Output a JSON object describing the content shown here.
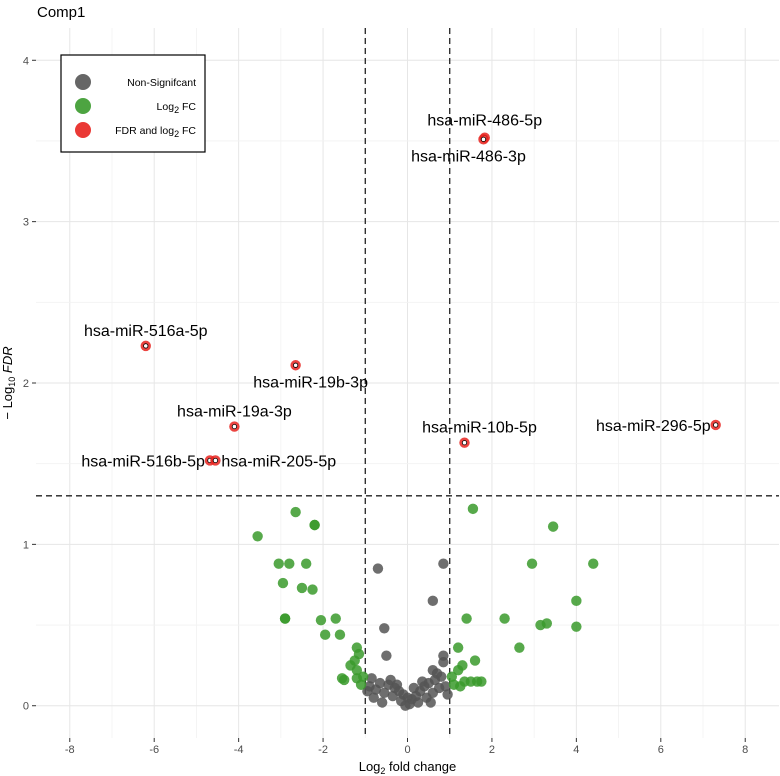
{
  "chart_data": {
    "type": "scatter",
    "title": "Comp1",
    "xlabel": {
      "pre": "Log",
      "sub": "2",
      "post": " fold change"
    },
    "ylabel": {
      "pre": "− Log",
      "sub": "10",
      "post": " FDR"
    },
    "xlim": [
      -8.8,
      8.8
    ],
    "ylim": [
      -0.2,
      4.2
    ],
    "x_ticks": [
      -8,
      -6,
      -4,
      -2,
      0,
      2,
      4,
      6,
      8
    ],
    "y_ticks": [
      0,
      1,
      2,
      3,
      4
    ],
    "fc_cutoff": [
      -1,
      1
    ],
    "fdr_cutoff": 1.301,
    "grid": true,
    "legend": {
      "position": "top-left",
      "entries": [
        {
          "key": "ns",
          "pre": "Non-Signifcant",
          "sub": "",
          "post": "",
          "color": "#555555"
        },
        {
          "key": "fc",
          "pre": "Log",
          "sub": "2",
          "post": " FC",
          "color": "#3a9a2c"
        },
        {
          "key": "both",
          "pre": "FDR and log",
          "sub": "2",
          "post": " FC",
          "color": "#e8231f"
        }
      ]
    },
    "series": [
      {
        "name": "FDR and log2 FC",
        "color": "#e8231f",
        "points": [
          {
            "label": "hsa-miR-486-5p",
            "x": 1.83,
            "y": 3.52
          },
          {
            "label": "hsa-miR-486-3p",
            "x": 1.8,
            "y": 3.51
          },
          {
            "label": "hsa-miR-516a-5p",
            "x": -6.2,
            "y": 2.23
          },
          {
            "label": "hsa-miR-19b-3p",
            "x": -2.65,
            "y": 2.11
          },
          {
            "label": "hsa-miR-19a-3p",
            "x": -4.1,
            "y": 1.73
          },
          {
            "label": "hsa-miR-10b-5p",
            "x": 1.35,
            "y": 1.63
          },
          {
            "label": "hsa-miR-296-5p",
            "x": 7.3,
            "y": 1.74
          },
          {
            "label": "hsa-miR-516b-5p",
            "x": -4.68,
            "y": 1.52
          },
          {
            "label": "hsa-miR-205-5p",
            "x": -4.55,
            "y": 1.52
          }
        ]
      },
      {
        "name": "Log2 FC",
        "color": "#3a9a2c",
        "points": [
          {
            "x": -3.55,
            "y": 1.05
          },
          {
            "x": -2.65,
            "y": 1.2
          },
          {
            "x": -2.2,
            "y": 1.12
          },
          {
            "x": -2.2,
            "y": 1.12
          },
          {
            "x": -3.05,
            "y": 0.88
          },
          {
            "x": -2.8,
            "y": 0.88
          },
          {
            "x": -2.4,
            "y": 0.88
          },
          {
            "x": -2.95,
            "y": 0.76
          },
          {
            "x": -2.5,
            "y": 0.73
          },
          {
            "x": -2.25,
            "y": 0.72
          },
          {
            "x": -1.7,
            "y": 0.54
          },
          {
            "x": -2.05,
            "y": 0.53
          },
          {
            "x": -2.9,
            "y": 0.54
          },
          {
            "x": -2.9,
            "y": 0.54
          },
          {
            "x": -1.95,
            "y": 0.44
          },
          {
            "x": -1.6,
            "y": 0.44
          },
          {
            "x": -1.2,
            "y": 0.36
          },
          {
            "x": -1.15,
            "y": 0.32
          },
          {
            "x": -1.25,
            "y": 0.28
          },
          {
            "x": -1.35,
            "y": 0.25
          },
          {
            "x": -1.2,
            "y": 0.22
          },
          {
            "x": -1.55,
            "y": 0.17
          },
          {
            "x": -1.5,
            "y": 0.16
          },
          {
            "x": -1.2,
            "y": 0.17
          },
          {
            "x": -1.1,
            "y": 0.13
          },
          {
            "x": -1.05,
            "y": 0.18
          },
          {
            "x": 1.55,
            "y": 1.22
          },
          {
            "x": 3.45,
            "y": 1.11
          },
          {
            "x": 2.95,
            "y": 0.88
          },
          {
            "x": 4.4,
            "y": 0.88
          },
          {
            "x": 4.0,
            "y": 0.65
          },
          {
            "x": 1.4,
            "y": 0.54
          },
          {
            "x": 2.3,
            "y": 0.54
          },
          {
            "x": 3.3,
            "y": 0.51
          },
          {
            "x": 3.15,
            "y": 0.5
          },
          {
            "x": 4.0,
            "y": 0.49
          },
          {
            "x": 2.65,
            "y": 0.36
          },
          {
            "x": 1.2,
            "y": 0.36
          },
          {
            "x": 1.6,
            "y": 0.28
          },
          {
            "x": 1.3,
            "y": 0.25
          },
          {
            "x": 1.2,
            "y": 0.22
          },
          {
            "x": 1.05,
            "y": 0.18
          },
          {
            "x": 1.35,
            "y": 0.15
          },
          {
            "x": 1.5,
            "y": 0.15
          },
          {
            "x": 1.65,
            "y": 0.15
          },
          {
            "x": 1.75,
            "y": 0.15
          },
          {
            "x": 1.1,
            "y": 0.13
          },
          {
            "x": 1.25,
            "y": 0.12
          }
        ]
      },
      {
        "name": "Non-Signifcant",
        "color": "#555555",
        "points": [
          {
            "x": -0.7,
            "y": 0.85
          },
          {
            "x": 0.85,
            "y": 0.88
          },
          {
            "x": 0.6,
            "y": 0.65
          },
          {
            "x": -0.55,
            "y": 0.48
          },
          {
            "x": -0.5,
            "y": 0.31
          },
          {
            "x": 0.85,
            "y": 0.31
          },
          {
            "x": 0.85,
            "y": 0.27
          },
          {
            "x": 0.6,
            "y": 0.22
          },
          {
            "x": 0.7,
            "y": 0.2
          },
          {
            "x": -0.85,
            "y": 0.17
          },
          {
            "x": -0.65,
            "y": 0.14
          },
          {
            "x": -0.45,
            "y": 0.13
          },
          {
            "x": -0.3,
            "y": 0.11
          },
          {
            "x": -0.2,
            "y": 0.09
          },
          {
            "x": -0.1,
            "y": 0.07
          },
          {
            "x": 0.0,
            "y": 0.05
          },
          {
            "x": 0.1,
            "y": 0.04
          },
          {
            "x": 0.2,
            "y": 0.06
          },
          {
            "x": 0.3,
            "y": 0.09
          },
          {
            "x": 0.4,
            "y": 0.12
          },
          {
            "x": 0.5,
            "y": 0.14
          },
          {
            "x": 0.65,
            "y": 0.16
          },
          {
            "x": 0.8,
            "y": 0.18
          },
          {
            "x": -0.75,
            "y": 0.1
          },
          {
            "x": -0.55,
            "y": 0.08
          },
          {
            "x": -0.35,
            "y": 0.06
          },
          {
            "x": -0.15,
            "y": 0.03
          },
          {
            "x": 0.05,
            "y": 0.01
          },
          {
            "x": 0.25,
            "y": 0.02
          },
          {
            "x": 0.45,
            "y": 0.05
          },
          {
            "x": 0.6,
            "y": 0.08
          },
          {
            "x": 0.75,
            "y": 0.11
          },
          {
            "x": -0.9,
            "y": 0.12
          },
          {
            "x": 0.9,
            "y": 0.12
          },
          {
            "x": -0.4,
            "y": 0.16
          },
          {
            "x": 0.35,
            "y": 0.15
          },
          {
            "x": -0.25,
            "y": 0.13
          },
          {
            "x": 0.15,
            "y": 0.11
          },
          {
            "x": -0.05,
            "y": 0.0
          },
          {
            "x": 0.55,
            "y": 0.02
          },
          {
            "x": -0.6,
            "y": 0.02
          },
          {
            "x": -0.8,
            "y": 0.05
          },
          {
            "x": 0.95,
            "y": 0.07
          },
          {
            "x": -0.95,
            "y": 0.09
          }
        ]
      }
    ]
  }
}
